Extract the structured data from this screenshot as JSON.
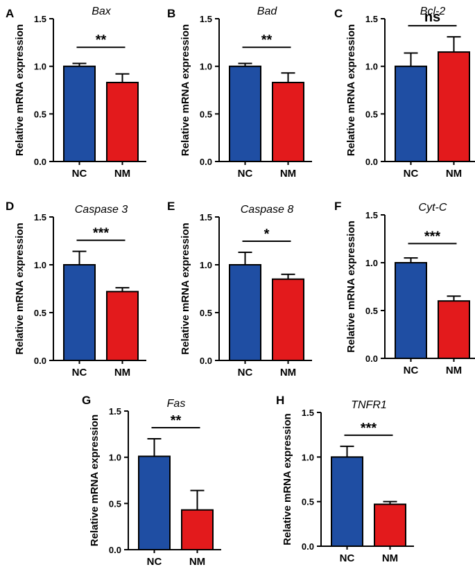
{
  "colors": {
    "NC": "#1f4ea3",
    "NM": "#e31a1c",
    "axis": "#000000"
  },
  "chart_data": [
    {
      "type": "bar",
      "panel": "A",
      "title": "Bax",
      "ylabel": "Relative mRNA expression",
      "ylim": [
        0,
        1.5
      ],
      "yticks": [
        "0.0",
        "0.5",
        "1.0",
        "1.5"
      ],
      "categories": [
        "NC",
        "NM"
      ],
      "values": [
        1.0,
        0.83
      ],
      "errors": [
        0.03,
        0.09
      ],
      "significance": "**"
    },
    {
      "type": "bar",
      "panel": "B",
      "title": "Bad",
      "ylabel": "Relative mRNA expression",
      "ylim": [
        0,
        1.5
      ],
      "yticks": [
        "0.0",
        "0.5",
        "1.0",
        "1.5"
      ],
      "categories": [
        "NC",
        "NM"
      ],
      "values": [
        1.0,
        0.83
      ],
      "errors": [
        0.03,
        0.1
      ],
      "significance": "**"
    },
    {
      "type": "bar",
      "panel": "C",
      "title": "Bcl-2",
      "ylabel": "Relative mRNA expression",
      "ylim": [
        0,
        1.5
      ],
      "yticks": [
        "0.0",
        "0.5",
        "1.0",
        "1.5"
      ],
      "categories": [
        "NC",
        "NM"
      ],
      "values": [
        1.0,
        1.15
      ],
      "errors": [
        0.14,
        0.16
      ],
      "significance": "ns"
    },
    {
      "type": "bar",
      "panel": "D",
      "title": "Caspase 3",
      "ylabel": "Relative mRNA expression",
      "ylim": [
        0,
        1.5
      ],
      "yticks": [
        "0.0",
        "0.5",
        "1.0",
        "1.5"
      ],
      "categories": [
        "NC",
        "NM"
      ],
      "values": [
        1.0,
        0.72
      ],
      "errors": [
        0.14,
        0.04
      ],
      "significance": "***"
    },
    {
      "type": "bar",
      "panel": "E",
      "title": "Caspase 8",
      "ylabel": "Relative mRNA expression",
      "ylim": [
        0,
        1.5
      ],
      "yticks": [
        "0.0",
        "0.5",
        "1.0",
        "1.5"
      ],
      "categories": [
        "NC",
        "NM"
      ],
      "values": [
        1.0,
        0.85
      ],
      "errors": [
        0.13,
        0.05
      ],
      "significance": "*"
    },
    {
      "type": "bar",
      "panel": "F",
      "title": "Cyt-C",
      "ylabel": "Relative mRNA expression",
      "ylim": [
        0,
        1.5
      ],
      "yticks": [
        "0.0",
        "0.5",
        "1.0",
        "1.5"
      ],
      "categories": [
        "NC",
        "NM"
      ],
      "values": [
        1.0,
        0.6
      ],
      "errors": [
        0.05,
        0.05
      ],
      "significance": "***"
    },
    {
      "type": "bar",
      "panel": "G",
      "title": "Fas",
      "ylabel": "Relative mRNA expression",
      "ylim": [
        0,
        1.5
      ],
      "yticks": [
        "0.0",
        "0.5",
        "1.0",
        "1.5"
      ],
      "categories": [
        "NC",
        "NM"
      ],
      "values": [
        1.01,
        0.43
      ],
      "errors": [
        0.19,
        0.21
      ],
      "significance": "**"
    },
    {
      "type": "bar",
      "panel": "H",
      "title": "TNFR1",
      "ylabel": "Relative mRNA expression",
      "ylim": [
        0,
        1.5
      ],
      "yticks": [
        "0.0",
        "0.5",
        "1.0",
        "1.5"
      ],
      "categories": [
        "NC",
        "NM"
      ],
      "values": [
        1.0,
        0.47
      ],
      "errors": [
        0.12,
        0.03
      ],
      "significance": "***"
    }
  ]
}
